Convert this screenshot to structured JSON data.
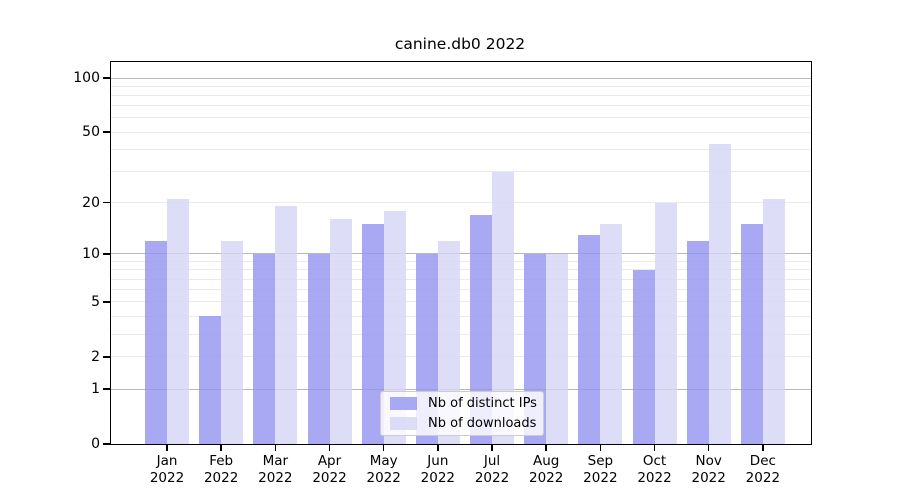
{
  "chart_data": {
    "type": "bar",
    "title": "canine.db0 2022",
    "year_label": "2022",
    "categories": [
      "Jan",
      "Feb",
      "Mar",
      "Apr",
      "May",
      "Jun",
      "Jul",
      "Aug",
      "Sep",
      "Oct",
      "Nov",
      "Dec"
    ],
    "series": [
      {
        "name": "Nb of distinct IPs",
        "color": "rgba(150,150,240,0.82)",
        "values": [
          12,
          4,
          10,
          10,
          15,
          10,
          17,
          10,
          13,
          8,
          12,
          15
        ]
      },
      {
        "name": "Nb of downloads",
        "color": "rgba(213,213,246,0.82)",
        "values": [
          21,
          12,
          19,
          16,
          18,
          12,
          30,
          10,
          15,
          20,
          43,
          21
        ]
      }
    ],
    "ylabel": "",
    "xlabel": "",
    "y_axis": {
      "scale": "log10(1+x)",
      "ticks": [
        0,
        1,
        2,
        5,
        10,
        20,
        50,
        100
      ],
      "major_gridlines": [
        1,
        10,
        100
      ],
      "minor_gridlines": [
        2,
        3,
        4,
        5,
        6,
        7,
        8,
        9,
        20,
        30,
        40,
        50,
        60,
        70,
        80,
        90
      ],
      "top_value": 100
    },
    "grid": true,
    "legend_position": "bottom-center",
    "colors": {
      "major_grid": "#b8b8b8",
      "minor_grid": "#ebebeb",
      "axis": "#000000",
      "legend_border": "#cccccc"
    }
  }
}
